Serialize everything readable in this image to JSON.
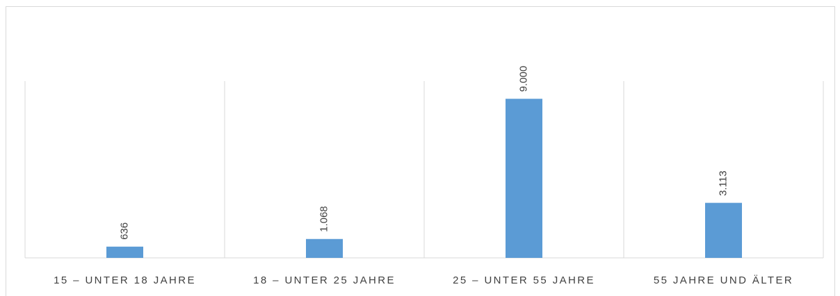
{
  "chart_data": {
    "type": "bar",
    "categories": [
      "15 – UNTER 18 JAHRE",
      "18 – UNTER 25 JAHRE",
      "25 – UNTER 55 JAHRE",
      "55 JAHRE UND ÄLTER"
    ],
    "values": [
      636,
      1068,
      9000,
      3113
    ],
    "value_labels": [
      "636",
      "1.068",
      "9.000",
      "3.113"
    ],
    "color": "#5b9bd5",
    "ylim": [
      0,
      10000
    ]
  }
}
